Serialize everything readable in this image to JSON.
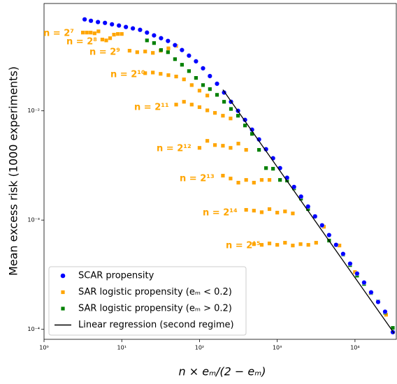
{
  "chart_data": {
    "type": "scatter",
    "x_label": "n × eₘ/(2 − eₘ)",
    "y_label": "Mean excess risk (1000 experiments)",
    "xscale": "log",
    "yscale": "log",
    "xlim": [
      1,
      34000
    ],
    "ylim": [
      8.1e-05,
      0.096
    ],
    "xticks": [
      {
        "value": 1,
        "label": "10⁰"
      },
      {
        "value": 10,
        "label": "10¹"
      },
      {
        "value": 100,
        "label": "10²"
      },
      {
        "value": 1000,
        "label": "10³"
      },
      {
        "value": 10000,
        "label": "10⁴"
      }
    ],
    "yticks": [
      {
        "value": 0.0001,
        "label": "10⁻⁴"
      },
      {
        "value": 0.001,
        "label": "10⁻³"
      },
      {
        "value": 0.01,
        "label": "10⁻²"
      }
    ],
    "legend": "lower left",
    "annotations": [
      "n = 2⁷",
      "n = 2⁸",
      "n = 2⁹",
      "n = 2¹⁰",
      "n = 2¹¹",
      "n = 2¹²",
      "n = 2¹³",
      "n = 2¹⁴",
      "n = 2¹⁵"
    ],
    "series": [
      {
        "name": "SCAR propensity",
        "color": "#0000ff",
        "marker": "circle",
        "x": [
          3.33,
          4.01,
          4.94,
          6.08,
          7.48,
          9.2,
          11.3,
          13.9,
          17.2,
          21.1,
          26.0,
          32.0,
          39.3,
          48.4,
          59.5,
          73.2,
          90.1,
          111,
          136,
          168,
          207,
          254,
          313,
          385,
          474,
          583,
          717,
          883,
          1086,
          1337,
          1644,
          2023,
          2490,
          3063,
          3773,
          4642,
          5712,
          7031,
          8650,
          10640,
          13090,
          16110,
          19820,
          24380,
          30650
        ],
        "values": [
          0.0687,
          0.0667,
          0.0649,
          0.0638,
          0.0619,
          0.0603,
          0.0585,
          0.0568,
          0.0551,
          0.052,
          0.049,
          0.0462,
          0.0436,
          0.0399,
          0.036,
          0.032,
          0.0284,
          0.0245,
          0.0208,
          0.0177,
          0.0147,
          0.0121,
          0.01,
          0.00826,
          0.00672,
          0.00547,
          0.00445,
          0.00368,
          0.00299,
          0.00244,
          0.00201,
          0.00164,
          0.00133,
          0.00108,
          0.000895,
          0.000729,
          0.000593,
          0.00049,
          0.000399,
          0.000324,
          0.000268,
          0.000218,
          0.000178,
          0.000145,
          9.42e-05
        ]
      },
      {
        "name": "SAR logistic propensity (eₘ < 0.2)",
        "color": "#ffa500",
        "marker": "square",
        "x": [
          3.16,
          3.55,
          3.98,
          4.47,
          5.01,
          5.62,
          6.31,
          7.08,
          7.94,
          8.91,
          10,
          12.6,
          15.8,
          20,
          25.1,
          31.6,
          39.8,
          50.1,
          20,
          25.1,
          31.6,
          39.8,
          50.1,
          63.1,
          79.4,
          100,
          126,
          50.1,
          63.1,
          79.4,
          100,
          126,
          158,
          200,
          251,
          100,
          126,
          158,
          200,
          251,
          316,
          398,
          200,
          251,
          316,
          398,
          501,
          631,
          794,
          398,
          501,
          631,
          794,
          1000,
          1259,
          1585,
          501,
          631,
          794,
          1000,
          1259,
          1585,
          1995,
          2512,
          3162,
          3981,
          6310,
          10000,
          15850,
          25120
        ],
        "values": [
          0.052,
          0.052,
          0.052,
          0.0512,
          0.0534,
          0.0449,
          0.0441,
          0.0462,
          0.0498,
          0.0505,
          0.0505,
          0.0355,
          0.0344,
          0.0349,
          0.0339,
          0.0355,
          0.0373,
          0.0393,
          0.0221,
          0.0224,
          0.0218,
          0.0212,
          0.0206,
          0.0194,
          0.0172,
          0.0153,
          0.0138,
          0.0114,
          0.0121,
          0.0114,
          0.0108,
          0.0101,
          0.00957,
          0.00902,
          0.00851,
          0.00458,
          0.00531,
          0.00486,
          0.00479,
          0.00458,
          0.00501,
          0.00439,
          0.00255,
          0.0024,
          0.0022,
          0.00233,
          0.0022,
          0.00233,
          0.00233,
          0.00124,
          0.00122,
          0.00118,
          0.00126,
          0.00117,
          0.0012,
          0.00115,
          0.000602,
          0.000593,
          0.000611,
          0.000593,
          0.00062,
          0.000585,
          0.000602,
          0.000593,
          0.00062,
          0.000869,
          0.000585,
          0.000334,
          0.000215,
          0.000136
        ]
      },
      {
        "name": "SAR logistic propensity (eₘ > 0.2)",
        "color": "#008000",
        "marker": "square",
        "x": [
          21.1,
          26.0,
          32.0,
          39.3,
          48.4,
          59.5,
          73.2,
          90.1,
          111,
          136,
          168,
          207,
          254,
          313,
          385,
          474,
          583,
          717,
          883,
          1086,
          1337,
          1644,
          2023,
          2490,
          3063,
          3773,
          4642,
          5712,
          7031,
          8650,
          10640,
          13090,
          16110,
          19820,
          24380,
          30650
        ],
        "values": [
          0.0441,
          0.0417,
          0.036,
          0.0344,
          0.0297,
          0.0264,
          0.0231,
          0.02,
          0.0172,
          0.0158,
          0.014,
          0.0121,
          0.0104,
          0.00902,
          0.00734,
          0.00615,
          0.00439,
          0.00299,
          0.00295,
          0.00233,
          0.0023,
          0.00195,
          0.00157,
          0.00126,
          0.00108,
          0.000895,
          0.000649,
          0.000593,
          0.000483,
          0.000387,
          0.00031,
          0.00026,
          0.000215,
          0.00018,
          0.000142,
          0.000103
        ]
      },
      {
        "name": "Linear regression (second regime)",
        "color": "#000000",
        "marker": "line",
        "x": [
          200,
          32000
        ],
        "values": [
          0.0156,
          9.16e-05
        ]
      }
    ]
  }
}
